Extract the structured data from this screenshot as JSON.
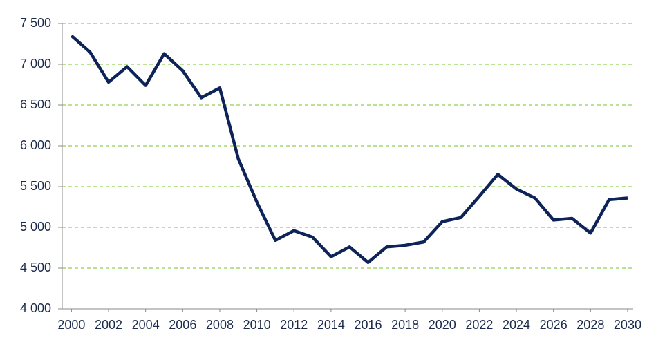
{
  "chart_data": {
    "type": "line",
    "x": [
      2000,
      2001,
      2002,
      2003,
      2004,
      2005,
      2006,
      2007,
      2008,
      2009,
      2010,
      2011,
      2012,
      2013,
      2014,
      2015,
      2016,
      2017,
      2018,
      2019,
      2020,
      2021,
      2022,
      2023,
      2024,
      2025,
      2026,
      2027,
      2028,
      2029,
      2030
    ],
    "series": [
      {
        "color": "#0e2357",
        "values": [
          7350,
          7150,
          6780,
          6970,
          6740,
          7130,
          6920,
          6590,
          6710,
          5840,
          5310,
          4840,
          4960,
          4880,
          4640,
          4760,
          4570,
          4760,
          4780,
          4820,
          5070,
          5120,
          5380,
          5650,
          5470,
          5360,
          5090,
          5110,
          4930,
          5340,
          5360
        ]
      }
    ],
    "xlim": [
      1999.5,
      2030.3
    ],
    "xticks": [
      2000,
      2002,
      2004,
      2006,
      2008,
      2010,
      2012,
      2014,
      2016,
      2018,
      2020,
      2022,
      2024,
      2026,
      2028,
      2030
    ],
    "ylim": [
      4000,
      7500
    ],
    "yticks": [
      {
        "value": 4000,
        "label": "4 000"
      },
      {
        "value": 4500,
        "label": "4 500"
      },
      {
        "value": 5000,
        "label": "5 000"
      },
      {
        "value": 5500,
        "label": "5 500"
      },
      {
        "value": 6000,
        "label": "6 000"
      },
      {
        "value": 6500,
        "label": "6 500"
      },
      {
        "value": 7000,
        "label": "7 000"
      },
      {
        "value": 7500,
        "label": "7 500"
      }
    ],
    "grid": true,
    "grid_color": "#92d050"
  }
}
